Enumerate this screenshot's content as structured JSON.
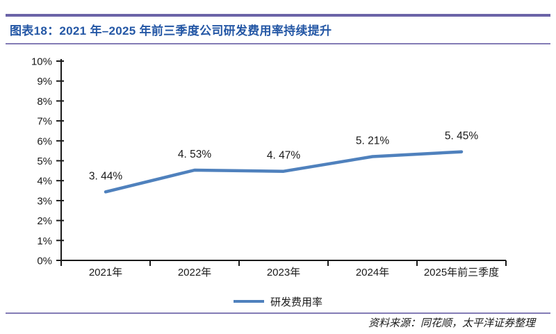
{
  "page": {
    "title": "图表18：2021 年–2025 年前三季度公司研发费用率持续提升",
    "source": "资料来源：同花顺，太平洋证券整理",
    "colors": {
      "title_blue": "#2457A5",
      "rule_purple_thick": "#6B64A7",
      "rule_purple_thin": "#837CB5",
      "series_blue": "#4F81BD",
      "axis_black": "#1a1a1a"
    }
  },
  "chart_data": {
    "type": "line",
    "title": "图表18：2021 年–2025 年前三季度公司研发费用率持续提升",
    "categories": [
      "2021年",
      "2022年",
      "2023年",
      "2024年",
      "2025年前三季度"
    ],
    "series": [
      {
        "name": "研发费用率",
        "values": [
          3.44,
          4.53,
          4.47,
          5.21,
          5.45
        ]
      }
    ],
    "point_labels": [
      "3. 44%",
      "4. 53%",
      "4. 47%",
      "5. 21%",
      "5. 45%"
    ],
    "y_ticks": [
      "0%",
      "1%",
      "2%",
      "3%",
      "4%",
      "5%",
      "6%",
      "7%",
      "8%",
      "9%",
      "10%"
    ],
    "ylim": [
      0,
      10
    ],
    "xlabel": "",
    "ylabel": "",
    "grid": false,
    "legend_position": "bottom",
    "line_color": "#4F81BD"
  }
}
